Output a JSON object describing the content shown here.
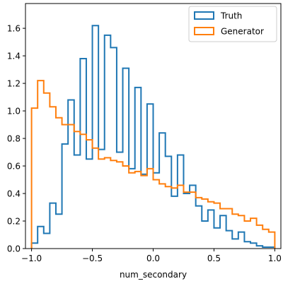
{
  "chart_data": {
    "type": "histogram",
    "title": "",
    "xlabel": "num_secondary",
    "ylabel": "",
    "xlim": [
      -1.05,
      1.05
    ],
    "ylim": [
      0.0,
      1.78
    ],
    "grid": false,
    "legend_position": "top-right",
    "x_ticks": [
      {
        "value": -1.0,
        "label": "−1.0"
      },
      {
        "value": -0.5,
        "label": "−0.5"
      },
      {
        "value": 0.0,
        "label": "0.0"
      },
      {
        "value": 0.5,
        "label": "0.5"
      },
      {
        "value": 1.0,
        "label": "1.0"
      }
    ],
    "y_ticks": [
      {
        "value": 0.0,
        "label": "0.0"
      },
      {
        "value": 0.2,
        "label": "0.2"
      },
      {
        "value": 0.4,
        "label": "0.4"
      },
      {
        "value": 0.6,
        "label": "0.6"
      },
      {
        "value": 0.8,
        "label": "0.8"
      },
      {
        "value": 1.0,
        "label": "1.0"
      },
      {
        "value": 1.2,
        "label": "1.2"
      },
      {
        "value": 1.4,
        "label": "1.4"
      },
      {
        "value": 1.6,
        "label": "1.6"
      }
    ],
    "bins": {
      "start": -1.0,
      "end": 1.0,
      "count": 40
    },
    "series": [
      {
        "name": "Truth",
        "color": "#1f77b4",
        "histtype": "step",
        "values": [
          0.04,
          0.16,
          0.11,
          0.33,
          0.25,
          0.76,
          1.08,
          0.68,
          1.38,
          0.65,
          1.62,
          0.72,
          1.55,
          1.46,
          0.7,
          1.31,
          0.58,
          1.17,
          0.54,
          1.05,
          0.55,
          0.84,
          0.67,
          0.38,
          0.68,
          0.4,
          0.46,
          0.31,
          0.2,
          0.28,
          0.15,
          0.24,
          0.13,
          0.07,
          0.12,
          0.05,
          0.04,
          0.02,
          0.01,
          0.01
        ]
      },
      {
        "name": "Generator",
        "color": "#ff7f0e",
        "histtype": "step",
        "values": [
          1.02,
          1.22,
          1.13,
          1.03,
          0.95,
          0.9,
          0.9,
          0.85,
          0.83,
          0.79,
          0.73,
          0.65,
          0.66,
          0.64,
          0.63,
          0.6,
          0.55,
          0.56,
          0.53,
          0.58,
          0.5,
          0.47,
          0.45,
          0.44,
          0.46,
          0.41,
          0.41,
          0.37,
          0.36,
          0.34,
          0.33,
          0.29,
          0.29,
          0.25,
          0.24,
          0.2,
          0.22,
          0.17,
          0.14,
          0.12
        ]
      }
    ]
  }
}
